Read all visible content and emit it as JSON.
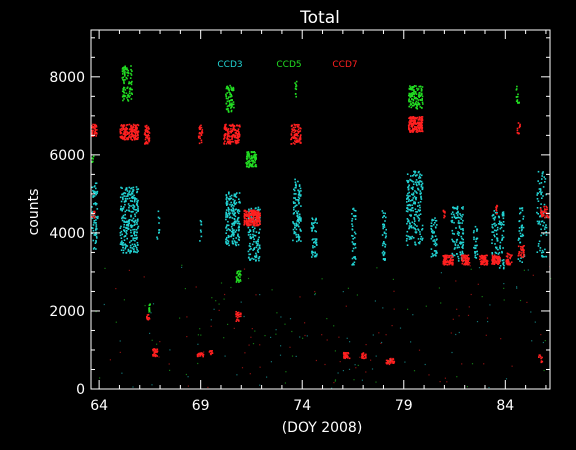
{
  "chart_data": {
    "type": "scatter",
    "title": "Total",
    "xlabel": "(DOY 2008)",
    "ylabel": "counts",
    "xlim": [
      63.6,
      67.8
    ],
    "xlim_note": "",
    "x_range": [
      63.6,
      86.2
    ],
    "ylim": [
      0,
      9200
    ],
    "x_ticks": [
      64,
      69,
      74,
      79,
      84
    ],
    "y_ticks": [
      0,
      2000,
      4000,
      6000,
      8000
    ],
    "grid": false,
    "legend_position": "top-center",
    "background": "#000000",
    "axis_color": "#ffffff",
    "series": [
      {
        "name": "CCD3",
        "color": "#22d3d3",
        "clusters": [
          {
            "x0": 63.6,
            "x1": 63.9,
            "y0": 3600,
            "y1": 5300,
            "n": 70
          },
          {
            "x0": 65.0,
            "x1": 65.9,
            "y0": 3500,
            "y1": 5200,
            "n": 260
          },
          {
            "x0": 66.8,
            "x1": 66.95,
            "y0": 3800,
            "y1": 4600,
            "n": 10
          },
          {
            "x0": 68.9,
            "x1": 69.0,
            "y0": 3800,
            "y1": 4400,
            "n": 8
          },
          {
            "x0": 70.2,
            "x1": 70.9,
            "y0": 3700,
            "y1": 5100,
            "n": 180
          },
          {
            "x0": 71.3,
            "x1": 71.9,
            "y0": 3300,
            "y1": 4700,
            "n": 120
          },
          {
            "x0": 73.5,
            "x1": 73.9,
            "y0": 3800,
            "y1": 5400,
            "n": 110
          },
          {
            "x0": 74.4,
            "x1": 74.7,
            "y0": 3400,
            "y1": 4400,
            "n": 50
          },
          {
            "x0": 76.4,
            "x1": 76.6,
            "y0": 3200,
            "y1": 4700,
            "n": 40
          },
          {
            "x0": 77.9,
            "x1": 78.1,
            "y0": 3300,
            "y1": 4600,
            "n": 40
          },
          {
            "x0": 79.1,
            "x1": 79.9,
            "y0": 3700,
            "y1": 5600,
            "n": 200
          },
          {
            "x0": 80.3,
            "x1": 80.6,
            "y0": 3400,
            "y1": 4400,
            "n": 50
          },
          {
            "x0": 81.3,
            "x1": 81.9,
            "y0": 3300,
            "y1": 4700,
            "n": 110
          },
          {
            "x0": 82.4,
            "x1": 82.6,
            "y0": 3300,
            "y1": 4200,
            "n": 30
          },
          {
            "x0": 83.3,
            "x1": 83.9,
            "y0": 3100,
            "y1": 4600,
            "n": 100
          },
          {
            "x0": 84.6,
            "x1": 84.9,
            "y0": 3200,
            "y1": 4700,
            "n": 40
          },
          {
            "x0": 85.5,
            "x1": 86.0,
            "y0": 3400,
            "y1": 5600,
            "n": 80
          }
        ]
      },
      {
        "name": "CCD5",
        "color": "#22dd22",
        "clusters": [
          {
            "x0": 63.6,
            "x1": 63.7,
            "y0": 5800,
            "y1": 6000,
            "n": 6
          },
          {
            "x0": 65.1,
            "x1": 65.6,
            "y0": 7400,
            "y1": 8300,
            "n": 90
          },
          {
            "x0": 66.4,
            "x1": 66.5,
            "y0": 2000,
            "y1": 2200,
            "n": 10
          },
          {
            "x0": 70.2,
            "x1": 70.6,
            "y0": 7100,
            "y1": 7800,
            "n": 70
          },
          {
            "x0": 70.7,
            "x1": 70.95,
            "y0": 2750,
            "y1": 3050,
            "n": 25
          },
          {
            "x0": 71.2,
            "x1": 71.7,
            "y0": 5700,
            "y1": 6100,
            "n": 80
          },
          {
            "x0": 73.6,
            "x1": 73.7,
            "y0": 7500,
            "y1": 7900,
            "n": 10
          },
          {
            "x0": 79.2,
            "x1": 79.9,
            "y0": 7200,
            "y1": 7800,
            "n": 120
          },
          {
            "x0": 84.5,
            "x1": 84.65,
            "y0": 7300,
            "y1": 7800,
            "n": 14
          }
        ]
      },
      {
        "name": "CCD7",
        "color": "#ff2020",
        "clusters": [
          {
            "x0": 63.6,
            "x1": 63.85,
            "y0": 6500,
            "y1": 6800,
            "n": 40
          },
          {
            "x0": 63.6,
            "x1": 63.75,
            "y0": 4400,
            "y1": 4600,
            "n": 8
          },
          {
            "x0": 65.0,
            "x1": 65.9,
            "y0": 6400,
            "y1": 6800,
            "n": 170
          },
          {
            "x0": 66.2,
            "x1": 66.45,
            "y0": 6300,
            "y1": 6800,
            "n": 50
          },
          {
            "x0": 66.3,
            "x1": 66.5,
            "y0": 1750,
            "y1": 1950,
            "n": 12
          },
          {
            "x0": 66.6,
            "x1": 66.85,
            "y0": 850,
            "y1": 1050,
            "n": 30
          },
          {
            "x0": 68.85,
            "x1": 69.05,
            "y0": 6300,
            "y1": 6800,
            "n": 25
          },
          {
            "x0": 68.8,
            "x1": 69.1,
            "y0": 850,
            "y1": 950,
            "n": 20
          },
          {
            "x0": 69.35,
            "x1": 69.55,
            "y0": 900,
            "y1": 1000,
            "n": 10
          },
          {
            "x0": 70.1,
            "x1": 70.9,
            "y0": 6300,
            "y1": 6800,
            "n": 150
          },
          {
            "x0": 70.7,
            "x1": 70.95,
            "y0": 1750,
            "y1": 2000,
            "n": 25
          },
          {
            "x0": 71.1,
            "x1": 71.9,
            "y0": 4200,
            "y1": 4600,
            "n": 200
          },
          {
            "x0": 73.4,
            "x1": 73.9,
            "y0": 6300,
            "y1": 6800,
            "n": 80
          },
          {
            "x0": 76.0,
            "x1": 76.3,
            "y0": 800,
            "y1": 950,
            "n": 30
          },
          {
            "x0": 76.9,
            "x1": 77.1,
            "y0": 800,
            "y1": 950,
            "n": 20
          },
          {
            "x0": 78.1,
            "x1": 78.5,
            "y0": 650,
            "y1": 800,
            "n": 35
          },
          {
            "x0": 79.2,
            "x1": 79.9,
            "y0": 6600,
            "y1": 7000,
            "n": 160
          },
          {
            "x0": 80.9,
            "x1": 81.4,
            "y0": 3200,
            "y1": 3450,
            "n": 80
          },
          {
            "x0": 80.9,
            "x1": 81.0,
            "y0": 4400,
            "y1": 4600,
            "n": 8
          },
          {
            "x0": 81.8,
            "x1": 82.2,
            "y0": 3200,
            "y1": 3450,
            "n": 60
          },
          {
            "x0": 82.7,
            "x1": 83.1,
            "y0": 3200,
            "y1": 3450,
            "n": 60
          },
          {
            "x0": 83.3,
            "x1": 83.7,
            "y0": 3200,
            "y1": 3450,
            "n": 70
          },
          {
            "x0": 83.5,
            "x1": 83.6,
            "y0": 4500,
            "y1": 4800,
            "n": 8
          },
          {
            "x0": 84.0,
            "x1": 84.3,
            "y0": 3200,
            "y1": 3500,
            "n": 40
          },
          {
            "x0": 84.55,
            "x1": 84.7,
            "y0": 6500,
            "y1": 6900,
            "n": 12
          },
          {
            "x0": 84.6,
            "x1": 84.9,
            "y0": 3400,
            "y1": 3700,
            "n": 30
          },
          {
            "x0": 85.6,
            "x1": 85.8,
            "y0": 700,
            "y1": 900,
            "n": 10
          },
          {
            "x0": 85.7,
            "x1": 86.1,
            "y0": 4400,
            "y1": 4700,
            "n": 40
          }
        ]
      }
    ]
  }
}
